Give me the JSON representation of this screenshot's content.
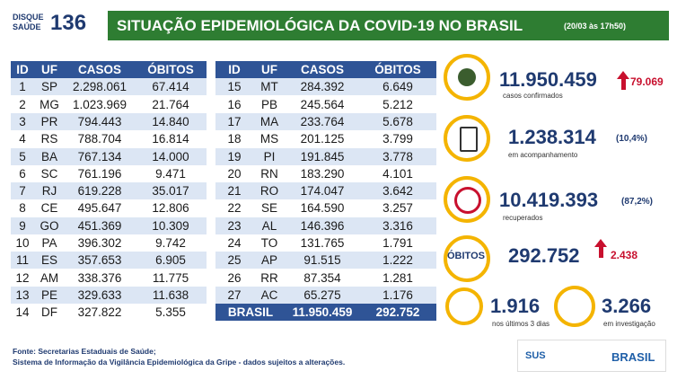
{
  "header": {
    "logo_top": "DISQUE",
    "logo_bottom": "SAÚDE",
    "logo_number": "136",
    "title": "SITUAÇÃO EPIDEMIOLÓGICA DA COVID-19 NO BRASIL",
    "date": "(20/03 às 17h50)"
  },
  "table": {
    "columns": [
      "ID",
      "UF",
      "CASOS",
      "ÓBITOS"
    ],
    "left_rows": [
      [
        "1",
        "SP",
        "2.298.061",
        "67.414"
      ],
      [
        "2",
        "MG",
        "1.023.969",
        "21.764"
      ],
      [
        "3",
        "PR",
        "794.443",
        "14.840"
      ],
      [
        "4",
        "RS",
        "788.704",
        "16.814"
      ],
      [
        "5",
        "BA",
        "767.134",
        "14.000"
      ],
      [
        "6",
        "SC",
        "761.196",
        "9.471"
      ],
      [
        "7",
        "RJ",
        "619.228",
        "35.017"
      ],
      [
        "8",
        "CE",
        "495.647",
        "12.806"
      ],
      [
        "9",
        "GO",
        "451.369",
        "10.309"
      ],
      [
        "10",
        "PA",
        "396.302",
        "9.742"
      ],
      [
        "11",
        "ES",
        "357.653",
        "6.905"
      ],
      [
        "12",
        "AM",
        "338.376",
        "11.775"
      ],
      [
        "13",
        "PE",
        "329.633",
        "11.638"
      ],
      [
        "14",
        "DF",
        "327.822",
        "5.355"
      ]
    ],
    "right_rows": [
      [
        "15",
        "MT",
        "284.392",
        "6.649"
      ],
      [
        "16",
        "PB",
        "245.564",
        "5.212"
      ],
      [
        "17",
        "MA",
        "233.764",
        "5.678"
      ],
      [
        "18",
        "MS",
        "201.125",
        "3.799"
      ],
      [
        "19",
        "PI",
        "191.845",
        "3.778"
      ],
      [
        "20",
        "RN",
        "183.290",
        "4.101"
      ],
      [
        "21",
        "RO",
        "174.047",
        "3.642"
      ],
      [
        "22",
        "SE",
        "164.590",
        "3.257"
      ],
      [
        "23",
        "AL",
        "146.396",
        "3.316"
      ],
      [
        "24",
        "TO",
        "131.765",
        "1.791"
      ],
      [
        "25",
        "AP",
        "91.515",
        "1.222"
      ],
      [
        "26",
        "RR",
        "87.354",
        "1.281"
      ],
      [
        "27",
        "AC",
        "65.275",
        "1.176"
      ]
    ],
    "total": [
      "BRASIL",
      "11.950.459",
      "292.752"
    ]
  },
  "stats": {
    "confirmed": {
      "value": "11.950.459",
      "delta": "79.069",
      "label": "casos confirmados"
    },
    "monitoring": {
      "value": "1.238.314",
      "pct": "(10,4%)",
      "label": "em acompanhamento"
    },
    "recovered": {
      "value": "10.419.393",
      "pct": "(87,2%)",
      "label": "recuperados"
    },
    "deaths": {
      "tag": "ÓBITOS",
      "value": "292.752",
      "delta": "2.438"
    },
    "recent": {
      "value": "1.916",
      "label": "nos últimos 3 dias"
    },
    "investigation": {
      "value": "3.266",
      "label": "em investigação"
    }
  },
  "footer": {
    "line1": "Fonte: Secretarias Estaduais de Saúde;",
    "line2": "Sistema de Informação da Vigilância Epidemiológica da Gripe - dados sujeitos a alterações.",
    "logo_sus": "SUS",
    "logo_brasil": "BRASIL"
  }
}
